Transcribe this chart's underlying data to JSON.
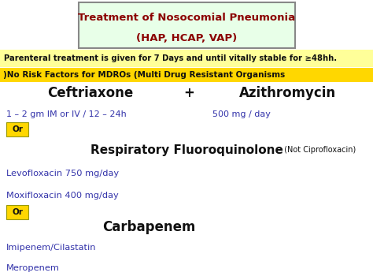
{
  "title_line1": "Treatment of Nosocomial Pneumonia",
  "title_line2": "(HAP, HCAP, VAP)",
  "title_color": "#8B0000",
  "title_box_bg": "#e8ffe8",
  "title_box_edge": "#888888",
  "banner1_text": "Parenteral treatment is given for 7 Days and until vitally stable for ≥48hh.",
  "banner1_bg": "#ffff99",
  "banner2_text": ")No Risk Factors for MDROs (Multi Drug Resistant Organisms",
  "banner2_bg": "#FFD700",
  "blue_color": "#3333aa",
  "black_color": "#111111",
  "yellow_color": "#FFD700",
  "bg_color": "#ffffff",
  "line1_left": "Ceftriaxone",
  "line1_mid": "+",
  "line1_right": "Azithromycin",
  "line2_left": "1 – 2 gm IM or IV / 12 – 24h",
  "line2_right": "500 mg / day",
  "or1_label": "Or",
  "rfq_main": "Respiratory Fluoroquinolone",
  "rfq_sub": " (Not Ciprofloxacin)",
  "levo": "Levofloxacin 750 mg/day",
  "moxi": "Moxifloxacin 400 mg/day",
  "or2_label": "Or",
  "carba": "Carbapenem",
  "imipenem": "Imipenem/Cilastatin",
  "meropenem": "Meropenem",
  "fig_width": 4.74,
  "fig_height": 3.55,
  "dpi": 100
}
